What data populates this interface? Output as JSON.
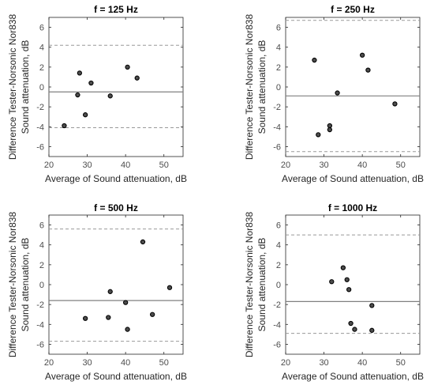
{
  "chart_data": [
    {
      "type": "scatter",
      "title": "f = 125 Hz",
      "xlabel": "Average of Sound attenuation, dB",
      "ylabel": [
        "Difference Tester-Norsonic Nor838",
        "Sound attenuation, dB"
      ],
      "xlim": [
        20,
        55
      ],
      "ylim": [
        -7,
        7
      ],
      "xticks": [
        20,
        30,
        40,
        50
      ],
      "yticks": [
        -6,
        -4,
        -2,
        0,
        2,
        4,
        6
      ],
      "grid": false,
      "points": [
        {
          "x": 24,
          "y": -3.9
        },
        {
          "x": 27.5,
          "y": -0.8
        },
        {
          "x": 28,
          "y": 1.4
        },
        {
          "x": 29.5,
          "y": -2.8
        },
        {
          "x": 31,
          "y": 0.4
        },
        {
          "x": 36,
          "y": -0.9
        },
        {
          "x": 40.5,
          "y": 2.0
        },
        {
          "x": 43,
          "y": 0.9
        }
      ],
      "mean_line": -0.5,
      "limits": [
        4.2,
        -4.1
      ],
      "colors": {
        "marker_fill": "#4d4d4d",
        "marker_edge": "#000000",
        "mean": "#808080",
        "limits": "#999999"
      }
    },
    {
      "type": "scatter",
      "title": "f = 250 Hz",
      "xlabel": "Average of Sound attenuation, dB",
      "ylabel": [
        "Difference Tester-Norsonic Nor838",
        "Sound attenuation, dB"
      ],
      "xlim": [
        20,
        55
      ],
      "ylim": [
        -7,
        7
      ],
      "xticks": [
        20,
        30,
        40,
        50
      ],
      "yticks": [
        -6,
        -4,
        -2,
        0,
        2,
        4,
        6
      ],
      "grid": false,
      "points": [
        {
          "x": 27.5,
          "y": 2.7
        },
        {
          "x": 28.5,
          "y": -4.8
        },
        {
          "x": 31.5,
          "y": -3.9
        },
        {
          "x": 31.5,
          "y": -4.3
        },
        {
          "x": 33.5,
          "y": -0.6
        },
        {
          "x": 40,
          "y": 3.2
        },
        {
          "x": 41.5,
          "y": 1.7
        },
        {
          "x": 48.5,
          "y": -1.7
        }
      ],
      "mean_line": -0.9,
      "limits": [
        6.7,
        -6.5
      ],
      "colors": {
        "marker_fill": "#4d4d4d",
        "marker_edge": "#000000",
        "mean": "#808080",
        "limits": "#999999"
      }
    },
    {
      "type": "scatter",
      "title": "f = 500 Hz",
      "xlabel": "Average of Sound attenuation, dB",
      "ylabel": [
        "Difference Tester-Norsonic Nor838",
        "Sound attenuation, dB"
      ],
      "xlim": [
        20,
        55
      ],
      "ylim": [
        -7,
        7
      ],
      "xticks": [
        20,
        30,
        40,
        50
      ],
      "yticks": [
        -6,
        -4,
        -2,
        0,
        2,
        4,
        6
      ],
      "grid": false,
      "points": [
        {
          "x": 29.5,
          "y": -3.4
        },
        {
          "x": 35.5,
          "y": -3.3
        },
        {
          "x": 36,
          "y": -0.7
        },
        {
          "x": 40,
          "y": -1.8
        },
        {
          "x": 40.5,
          "y": -4.5
        },
        {
          "x": 44.5,
          "y": 4.3
        },
        {
          "x": 47,
          "y": -3.0
        },
        {
          "x": 51.5,
          "y": -0.3
        }
      ],
      "mean_line": -1.6,
      "limits": [
        5.6,
        -5.7
      ],
      "colors": {
        "marker_fill": "#4d4d4d",
        "marker_edge": "#000000",
        "mean": "#808080",
        "limits": "#999999"
      }
    },
    {
      "type": "scatter",
      "title": "f = 1000 Hz",
      "xlabel": "Average of Sound attenuation, dB",
      "ylabel": [
        "Difference Tester-Norsonic Nor838",
        "Sound attenuation, dB"
      ],
      "xlim": [
        20,
        55
      ],
      "ylim": [
        -7,
        7
      ],
      "xticks": [
        20,
        30,
        40,
        50
      ],
      "yticks": [
        -6,
        -4,
        -2,
        0,
        2,
        4,
        6
      ],
      "grid": false,
      "points": [
        {
          "x": 32,
          "y": 0.3
        },
        {
          "x": 35,
          "y": 1.7
        },
        {
          "x": 36,
          "y": 0.5
        },
        {
          "x": 36.5,
          "y": -0.5
        },
        {
          "x": 37,
          "y": -3.9
        },
        {
          "x": 38,
          "y": -4.5
        },
        {
          "x": 42.5,
          "y": -2.1
        },
        {
          "x": 42.5,
          "y": -4.6
        }
      ],
      "mean_line": -1.7,
      "limits": [
        5.0,
        -4.9
      ],
      "colors": {
        "marker_fill": "#4d4d4d",
        "marker_edge": "#000000",
        "mean": "#808080",
        "limits": "#999999"
      }
    }
  ]
}
